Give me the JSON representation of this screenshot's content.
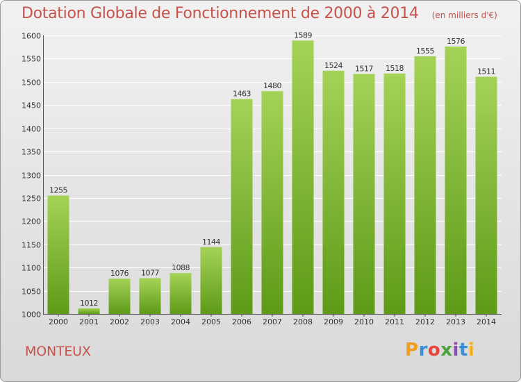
{
  "header": {
    "title": "Dotation Globale de Fonctionnement de 2000 à 2014",
    "unit_note": "(en milliers d'€)"
  },
  "footer": {
    "commune": "MONTEUX",
    "logo_letters": [
      "P",
      "r",
      "o",
      "x",
      "i",
      "t",
      "i"
    ]
  },
  "colors": {
    "title": "#c7514b",
    "bar_top": "#a4d257",
    "bar_bottom": "#5e9a18",
    "grid": "#ffffff",
    "axis_text": "#333333"
  },
  "chart_data": {
    "type": "bar",
    "categories": [
      "2000",
      "2001",
      "2002",
      "2003",
      "2004",
      "2005",
      "2006",
      "2007",
      "2008",
      "2009",
      "2010",
      "2011",
      "2012",
      "2013",
      "2014"
    ],
    "values": [
      1255,
      1012,
      1076,
      1077,
      1088,
      1144,
      1463,
      1480,
      1589,
      1524,
      1517,
      1518,
      1555,
      1576,
      1511
    ],
    "title": "Dotation Globale de Fonctionnement de 2000 à 2014",
    "xlabel": "",
    "ylabel": "",
    "ylim": [
      1000,
      1600
    ],
    "yticks": [
      1000,
      1050,
      1100,
      1150,
      1200,
      1250,
      1300,
      1350,
      1400,
      1450,
      1500,
      1550,
      1600
    ],
    "grid": true,
    "data_labels": true
  }
}
